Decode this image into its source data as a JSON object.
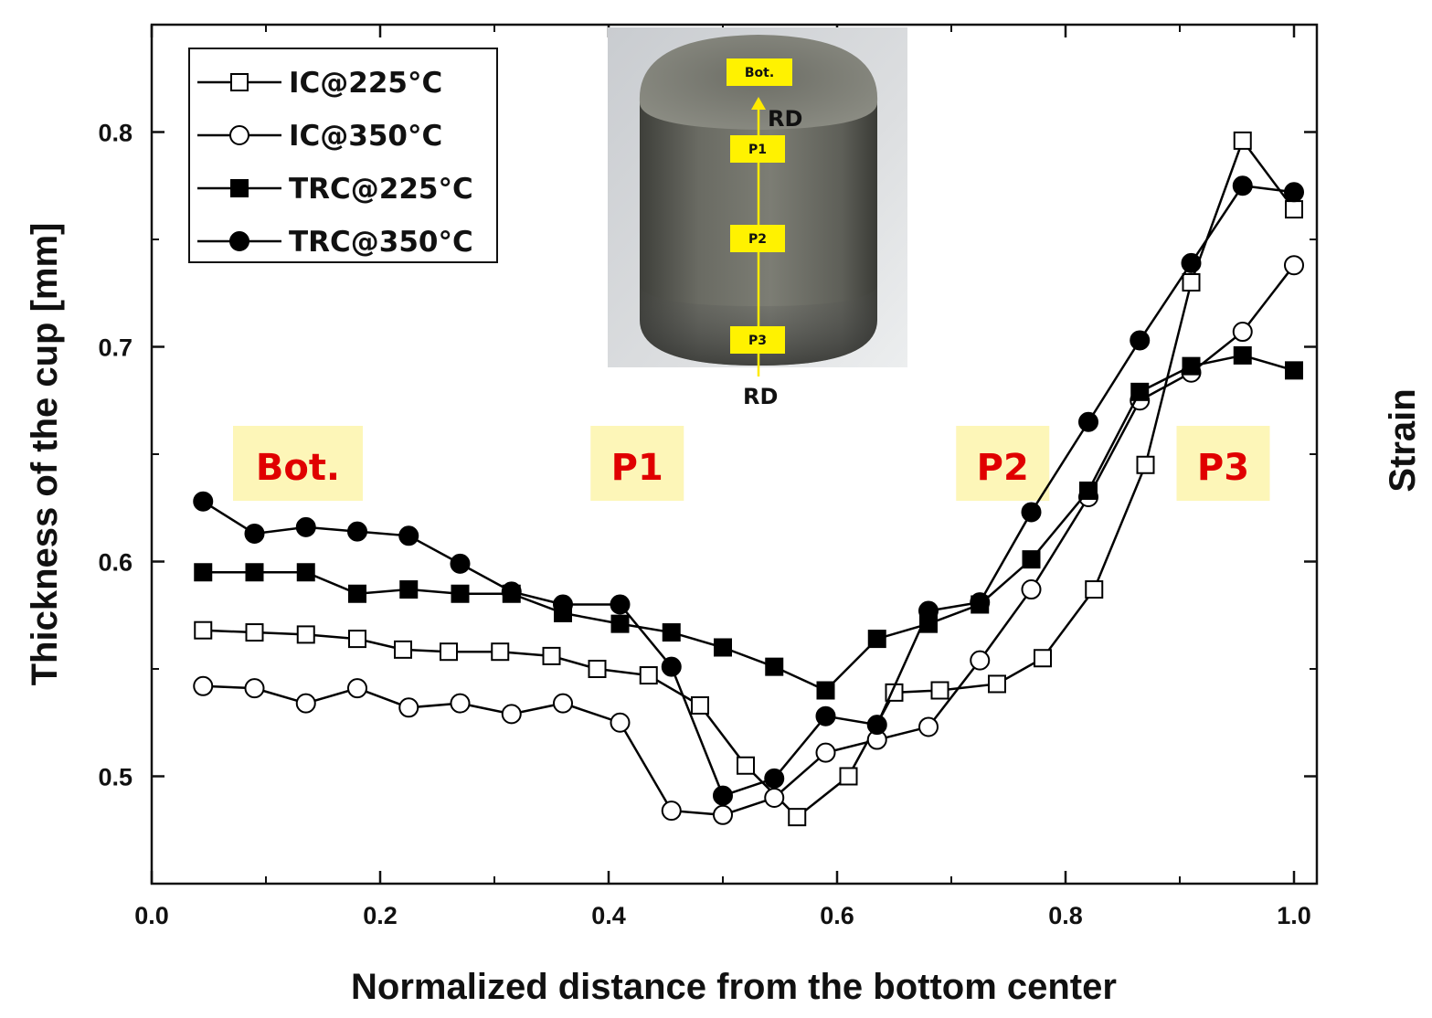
{
  "chart_data": {
    "type": "line",
    "xlabel": "Normalized distance from the bottom center",
    "ylabel": "Thickness of the cup [mm]",
    "right_label": "Strain",
    "xlim": [
      0.0,
      1.02
    ],
    "ylim": [
      0.45,
      0.85
    ],
    "xticks": [
      "0.0",
      "0.2",
      "0.4",
      "0.6",
      "0.8",
      "1.0"
    ],
    "xtick_values": [
      0.0,
      0.2,
      0.4,
      0.6,
      0.8,
      1.0
    ],
    "yticks": [
      "0.5",
      "0.6",
      "0.7",
      "0.8"
    ],
    "ytick_values": [
      0.5,
      0.6,
      0.7,
      0.8
    ],
    "legend_position": "top-left",
    "series": [
      {
        "name": "IC@225°C",
        "marker": "square-open",
        "x": [
          0.045,
          0.09,
          0.135,
          0.18,
          0.22,
          0.26,
          0.305,
          0.35,
          0.39,
          0.435,
          0.48,
          0.52,
          0.565,
          0.61,
          0.65,
          0.69,
          0.74,
          0.78,
          0.825,
          0.87,
          0.91,
          0.955,
          1.0
        ],
        "values": [
          0.568,
          0.567,
          0.566,
          0.564,
          0.559,
          0.558,
          0.558,
          0.556,
          0.55,
          0.547,
          0.533,
          0.505,
          0.481,
          0.5,
          0.539,
          0.54,
          0.543,
          0.555,
          0.587,
          0.645,
          0.73,
          0.796,
          0.764
        ]
      },
      {
        "name": "IC@350°C",
        "marker": "circle-open",
        "x": [
          0.045,
          0.09,
          0.135,
          0.18,
          0.225,
          0.27,
          0.315,
          0.36,
          0.41,
          0.455,
          0.5,
          0.545,
          0.59,
          0.635,
          0.68,
          0.725,
          0.77,
          0.82,
          0.865,
          0.91,
          0.955,
          1.0
        ],
        "values": [
          0.542,
          0.541,
          0.534,
          0.541,
          0.532,
          0.534,
          0.529,
          0.534,
          0.525,
          0.484,
          0.482,
          0.49,
          0.511,
          0.517,
          0.523,
          0.554,
          0.587,
          0.63,
          0.675,
          0.688,
          0.707,
          0.738
        ]
      },
      {
        "name": "TRC@225°C",
        "marker": "square-filled",
        "x": [
          0.045,
          0.09,
          0.135,
          0.18,
          0.225,
          0.27,
          0.315,
          0.36,
          0.41,
          0.455,
          0.5,
          0.545,
          0.59,
          0.635,
          0.68,
          0.725,
          0.77,
          0.82,
          0.865,
          0.91,
          0.955,
          1.0
        ],
        "values": [
          0.595,
          0.595,
          0.595,
          0.585,
          0.587,
          0.585,
          0.585,
          0.576,
          0.571,
          0.567,
          0.56,
          0.551,
          0.54,
          0.564,
          0.571,
          0.58,
          0.601,
          0.633,
          0.679,
          0.691,
          0.696,
          0.689
        ]
      },
      {
        "name": "TRC@350°C",
        "marker": "circle-filled",
        "x": [
          0.045,
          0.09,
          0.135,
          0.18,
          0.225,
          0.27,
          0.315,
          0.36,
          0.41,
          0.455,
          0.5,
          0.545,
          0.59,
          0.635,
          0.68,
          0.725,
          0.77,
          0.82,
          0.865,
          0.91,
          0.955,
          1.0
        ],
        "values": [
          0.628,
          0.613,
          0.616,
          0.614,
          0.612,
          0.599,
          0.586,
          0.58,
          0.58,
          0.551,
          0.491,
          0.499,
          0.528,
          0.524,
          0.577,
          0.581,
          0.623,
          0.665,
          0.703,
          0.739,
          0.775,
          0.772
        ]
      }
    ],
    "regions": [
      {
        "label": "Bot.",
        "x_center": 0.128
      },
      {
        "label": "P1",
        "x_center": 0.425
      },
      {
        "label": "P2",
        "x_center": 0.745
      },
      {
        "label": "P3",
        "x_center": 0.938
      }
    ],
    "inset": {
      "tags": [
        "Bot.",
        "P1",
        "P2",
        "P3"
      ],
      "direction_label_top": "RD",
      "direction_label_bottom": "RD"
    }
  }
}
